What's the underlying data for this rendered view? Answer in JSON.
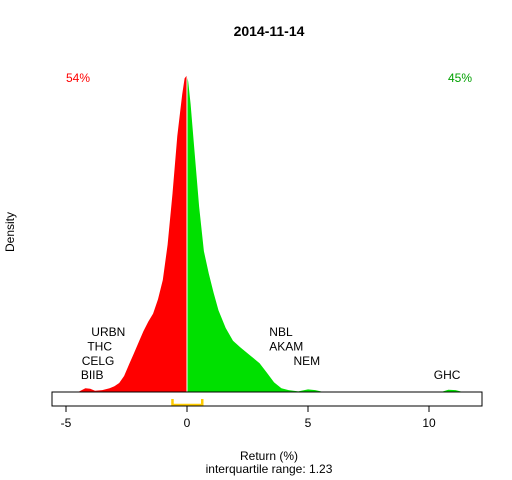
{
  "chart_data": {
    "type": "area",
    "title": "2014-11-14",
    "xlabel": "Return (%)",
    "ylabel": "Density",
    "subtitle": "interquartile range: 1.23",
    "xlim": [
      -5,
      12
    ],
    "xticks": [
      -5,
      0,
      5,
      10
    ],
    "ylim": [
      0,
      1.0
    ],
    "split_at": 0,
    "colors": {
      "negative": "#ff0000",
      "positive": "#00e000",
      "iqr": "#ffcc00",
      "left_pct_text": "#ff0000",
      "right_pct_text": "#00a000"
    },
    "left_percent": "54%",
    "right_percent": "45%",
    "iqr": [
      -0.6,
      0.63
    ],
    "density": [
      [
        -4.5,
        0.0
      ],
      [
        -4.2,
        0.012
      ],
      [
        -4.0,
        0.01
      ],
      [
        -3.8,
        0.004
      ],
      [
        -3.5,
        0.006
      ],
      [
        -3.2,
        0.012
      ],
      [
        -3.0,
        0.018
      ],
      [
        -2.8,
        0.028
      ],
      [
        -2.6,
        0.05
      ],
      [
        -2.4,
        0.085
      ],
      [
        -2.2,
        0.12
      ],
      [
        -2.0,
        0.155
      ],
      [
        -1.8,
        0.19
      ],
      [
        -1.6,
        0.22
      ],
      [
        -1.4,
        0.245
      ],
      [
        -1.2,
        0.29
      ],
      [
        -1.0,
        0.35
      ],
      [
        -0.8,
        0.46
      ],
      [
        -0.6,
        0.62
      ],
      [
        -0.4,
        0.8
      ],
      [
        -0.2,
        0.93
      ],
      [
        -0.1,
        0.98
      ],
      [
        0.0,
        0.99
      ],
      [
        0.05,
        0.97
      ],
      [
        0.15,
        0.9
      ],
      [
        0.3,
        0.76
      ],
      [
        0.5,
        0.58
      ],
      [
        0.7,
        0.44
      ],
      [
        0.9,
        0.37
      ],
      [
        1.1,
        0.31
      ],
      [
        1.3,
        0.255
      ],
      [
        1.6,
        0.2
      ],
      [
        1.9,
        0.16
      ],
      [
        2.2,
        0.14
      ],
      [
        2.6,
        0.115
      ],
      [
        3.0,
        0.09
      ],
      [
        3.3,
        0.06
      ],
      [
        3.6,
        0.03
      ],
      [
        3.9,
        0.012
      ],
      [
        4.2,
        0.006
      ],
      [
        4.6,
        0.002
      ],
      [
        5.0,
        0.008
      ],
      [
        5.3,
        0.006
      ],
      [
        5.6,
        0.001
      ],
      [
        6.0,
        0.0
      ],
      [
        10.5,
        0.0
      ],
      [
        10.8,
        0.007
      ],
      [
        11.1,
        0.006
      ],
      [
        11.4,
        0.0
      ]
    ],
    "labels": [
      {
        "text": "URBN",
        "x": -2.55,
        "y": 0.175,
        "anchor": "end"
      },
      {
        "text": "THC",
        "x": -3.1,
        "y": 0.13,
        "anchor": "end"
      },
      {
        "text": "CELG",
        "x": -3.0,
        "y": 0.085,
        "anchor": "end"
      },
      {
        "text": "BIIB",
        "x": -3.45,
        "y": 0.04,
        "anchor": "end"
      },
      {
        "text": "NBL",
        "x": 3.4,
        "y": 0.175,
        "anchor": "start"
      },
      {
        "text": "AKAM",
        "x": 3.4,
        "y": 0.13,
        "anchor": "start"
      },
      {
        "text": "NEM",
        "x": 4.4,
        "y": 0.085,
        "anchor": "start"
      },
      {
        "text": "GHC",
        "x": 10.2,
        "y": 0.04,
        "anchor": "start"
      }
    ]
  }
}
